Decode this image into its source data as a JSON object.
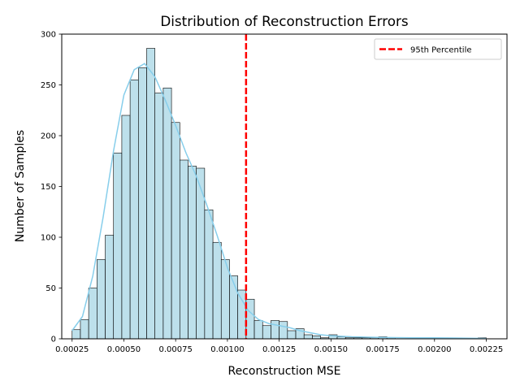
{
  "chart_data": {
    "type": "bar",
    "title": "Distribution of Reconstruction Errors",
    "xlabel": "Reconstruction MSE",
    "ylabel": "Number of Samples",
    "xlim": [
      0.0002,
      0.00235
    ],
    "ylim": [
      0,
      300
    ],
    "x_ticks": [
      0.00025,
      0.0005,
      0.00075,
      0.001,
      0.00125,
      0.0015,
      0.00175,
      0.002,
      0.00225
    ],
    "x_tick_labels": [
      "0.00025",
      "0.00050",
      "0.00075",
      "0.00100",
      "0.00125",
      "0.00150",
      "0.00175",
      "0.00200",
      "0.00225"
    ],
    "y_ticks": [
      0,
      50,
      100,
      150,
      200,
      250,
      300
    ],
    "y_tick_labels": [
      "0",
      "50",
      "100",
      "150",
      "200",
      "250",
      "300"
    ],
    "bin_start": 0.00025,
    "bin_width": 4e-05,
    "counts": [
      9,
      19,
      50,
      78,
      102,
      183,
      220,
      255,
      267,
      286,
      242,
      247,
      213,
      176,
      170,
      168,
      127,
      95,
      78,
      62,
      48,
      39,
      18,
      13,
      18,
      17,
      8,
      10,
      4,
      3,
      1,
      4,
      2,
      1,
      1,
      1,
      1,
      2,
      1,
      0,
      0,
      0,
      0,
      0,
      0,
      0,
      0,
      0,
      0,
      1
    ],
    "kde": {
      "x": [
        0.00025,
        0.0003,
        0.00035,
        0.0004,
        0.00045,
        0.0005,
        0.00055,
        0.0006,
        0.00065,
        0.0007,
        0.00075,
        0.0008,
        0.00085,
        0.0009,
        0.00095,
        0.001,
        0.00105,
        0.0011,
        0.00115,
        0.0012,
        0.00125,
        0.0013,
        0.00135,
        0.0014,
        0.00145,
        0.0015,
        0.0016,
        0.0017,
        0.0018,
        0.0019,
        0.002,
        0.0021,
        0.0022,
        0.00225
      ],
      "y": [
        8,
        22,
        62,
        120,
        185,
        240,
        265,
        271,
        258,
        235,
        210,
        183,
        160,
        132,
        102,
        70,
        45,
        28,
        19,
        15,
        13,
        11,
        8,
        6,
        4,
        3,
        2,
        1.5,
        1.2,
        1,
        1,
        0.8,
        0.5,
        0.3
      ]
    },
    "threshold": {
      "value": 0.00109,
      "label": "95th Percentile",
      "color": "#ff0000"
    },
    "bar_color": "#add8e6",
    "bar_edge_color": "#000000",
    "kde_color": "#87ceeb",
    "legend_position": "top-right",
    "grid": false
  }
}
